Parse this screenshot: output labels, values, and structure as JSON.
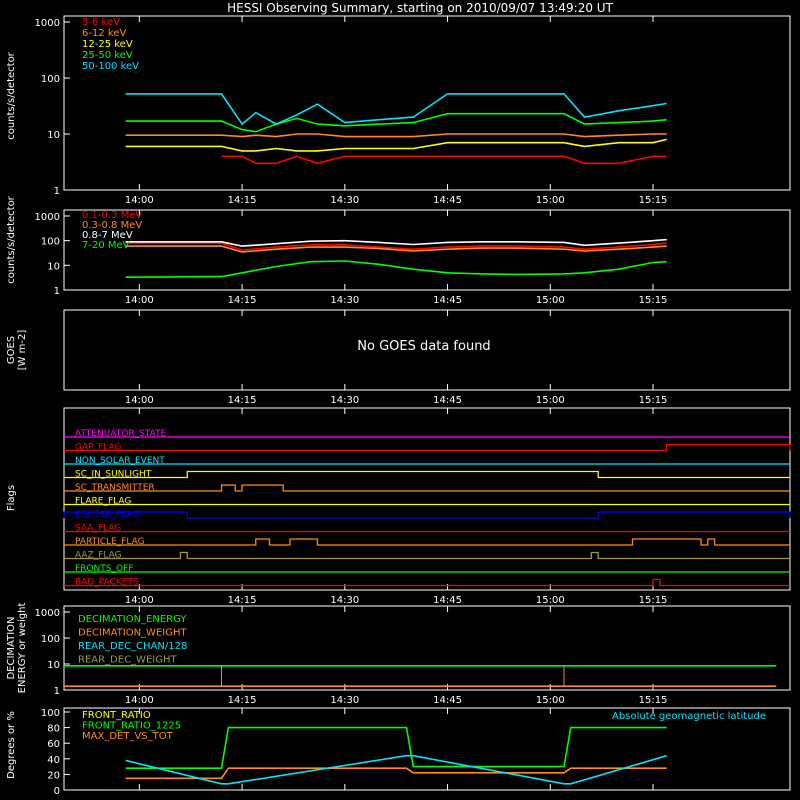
{
  "title": "HESSI Observing Summary, starting on 2010/09/07 13:49:20 UT",
  "time_ticks": [
    "14:00",
    "14:15",
    "14:30",
    "14:45",
    "15:00",
    "15:15"
  ],
  "colors": {
    "red": "#ff0000",
    "orange": "#ff8c1a",
    "yellow": "#ffff00",
    "green": "#00ff00",
    "cyan": "#00e5ff",
    "white": "#ffffff",
    "magenta": "#ff00ff",
    "blue": "#0000ff",
    "olive": "#9a9a3a"
  },
  "chart_data": [
    {
      "type": "line",
      "panel": "hessi-rates",
      "ylabel": "counts/s/detector",
      "ylim": [
        1,
        1000
      ],
      "log": true,
      "yticks": [
        "1",
        "10",
        "100",
        "1000"
      ],
      "x": [
        "13:58",
        "14:12",
        "14:15",
        "14:17",
        "14:20",
        "14:23",
        "14:26",
        "14:30",
        "14:35",
        "14:40",
        "14:45",
        "14:50",
        "14:55",
        "15:02",
        "15:05",
        "15:10",
        "15:15",
        "15:17"
      ],
      "series": [
        {
          "name": "3-6 keV",
          "color": "red",
          "values": [
            null,
            4,
            4,
            3,
            3,
            4,
            3,
            4,
            4,
            4,
            4,
            4,
            4,
            4,
            3,
            3,
            4,
            4
          ]
        },
        {
          "name": "6-12 keV",
          "color": "orange",
          "values": [
            9.5,
            9.5,
            9,
            9.5,
            9,
            10,
            10,
            9,
            9,
            9,
            10,
            10,
            10,
            10,
            9,
            9.5,
            10,
            10
          ]
        },
        {
          "name": "12-25 keV",
          "color": "yellow",
          "values": [
            6,
            6,
            5,
            5,
            5.5,
            5,
            5,
            5.5,
            5.5,
            5.5,
            7,
            7,
            7,
            7,
            6,
            7,
            7,
            8
          ]
        },
        {
          "name": "25-50 keV",
          "color": "green",
          "values": [
            17,
            17,
            12,
            11,
            15,
            19,
            15,
            14,
            15,
            16,
            23,
            23,
            23,
            23,
            15,
            16,
            17,
            18
          ]
        },
        {
          "name": "50-100 keV",
          "color": "cyan",
          "values": [
            52,
            52,
            15,
            24,
            15,
            22,
            34,
            16,
            18,
            20,
            52,
            52,
            52,
            52,
            20,
            26,
            32,
            35
          ]
        }
      ]
    },
    {
      "type": "line",
      "panel": "hessi-mev",
      "ylabel": "counts/s/detector",
      "ylim": [
        1,
        1000
      ],
      "log": true,
      "yticks": [
        "1",
        "10",
        "100",
        "1000"
      ],
      "x": [
        "13:58",
        "14:05",
        "14:12",
        "14:15",
        "14:20",
        "14:25",
        "14:30",
        "14:35",
        "14:40",
        "14:45",
        "14:50",
        "14:55",
        "15:02",
        "15:05",
        "15:10",
        "15:15",
        "15:17"
      ],
      "series": [
        {
          "name": "0.1-0.3 MeV",
          "color": "red",
          "values": [
            80,
            80,
            80,
            42,
            55,
            68,
            68,
            55,
            45,
            55,
            60,
            60,
            55,
            45,
            55,
            70,
            80
          ]
        },
        {
          "name": "0.3-0.8 MeV",
          "color": "orange",
          "values": [
            60,
            60,
            60,
            35,
            45,
            55,
            55,
            48,
            38,
            45,
            50,
            50,
            45,
            38,
            45,
            55,
            60
          ]
        },
        {
          "name": "0.8-7 MeV",
          "color": "white",
          "values": [
            90,
            90,
            90,
            60,
            75,
            95,
            100,
            85,
            70,
            85,
            90,
            90,
            85,
            65,
            80,
            100,
            110
          ]
        },
        {
          "name": "7-20 MeV",
          "color": "green",
          "values": [
            3.3,
            3.4,
            3.5,
            5,
            9,
            14,
            15,
            11,
            7,
            5,
            4.5,
            4.3,
            4.5,
            5,
            7,
            13,
            14
          ]
        }
      ]
    },
    {
      "type": "line",
      "panel": "goes",
      "ylabel": "GOES [W m-2]",
      "message": "No GOES data found",
      "series": []
    },
    {
      "type": "table",
      "panel": "flags",
      "ylabel": "Flags",
      "flags": [
        {
          "name": "ATTENUATOR_STATE",
          "color": "magenta",
          "segments": []
        },
        {
          "name": "GAP_FLAG",
          "color": "red",
          "segments": [
            [
              "15:17",
              "15:35"
            ]
          ]
        },
        {
          "name": "NON_SOLAR_EVENT",
          "color": "cyan",
          "segments": []
        },
        {
          "name": "SC_IN_SUNLIGHT",
          "color": "yellow",
          "segments": [
            [
              "14:07",
              "15:07"
            ]
          ]
        },
        {
          "name": "SC_TRANSMITTER",
          "color": "orange",
          "segments": [
            [
              "14:12",
              "14:14"
            ],
            [
              "14:15",
              "14:21"
            ]
          ]
        },
        {
          "name": "FLARE_FLAG",
          "color": "yellow",
          "segments": []
        },
        {
          "name": "ECLIPSE_FLAG",
          "color": "blue",
          "segments": [
            [
              "13:49",
              "14:07"
            ],
            [
              "15:07",
              "15:35"
            ]
          ]
        },
        {
          "name": "SAA_FLAG",
          "color": "red",
          "segments": []
        },
        {
          "name": "PARTICLE_FLAG",
          "color": "orange",
          "segments": [
            [
              "14:17",
              "14:19"
            ],
            [
              "14:22",
              "14:26"
            ],
            [
              "15:12",
              "15:22"
            ],
            [
              "15:23",
              "15:24"
            ]
          ]
        },
        {
          "name": "AAZ_FLAG",
          "color": "olive",
          "segments": [
            [
              "14:06",
              "14:07"
            ],
            [
              "15:06",
              "15:07"
            ]
          ]
        },
        {
          "name": "FRONTS_OFF",
          "color": "green",
          "segments": []
        },
        {
          "name": "BAD_PACKETS",
          "color": "red",
          "segments": [
            [
              "15:15",
              "15:16"
            ]
          ]
        }
      ]
    },
    {
      "type": "line",
      "panel": "decimation",
      "ylabel": "DECIMATION ENERGY or weight",
      "ylim": [
        1,
        1000
      ],
      "log": true,
      "yticks": [
        "1",
        "10",
        "100",
        "1000"
      ],
      "x": [
        "13:49",
        "13:51",
        "14:12",
        "15:02",
        "15:33"
      ],
      "series": [
        {
          "name": "DECIMATION_ENERGY",
          "color": "green",
          "values": [
            8.5,
            8.5,
            8.5,
            8.5,
            8.5
          ]
        },
        {
          "name": "DECIMATION_WEIGHT",
          "color": "orange",
          "values": [
            1.4,
            1.4,
            1.4,
            1.4,
            1.4
          ]
        },
        {
          "name": "REAR_DEC_CHAN/128",
          "color": "cyan",
          "values": [
            null,
            null,
            null,
            null,
            null
          ]
        },
        {
          "name": "REAR_DEC_WEIGHT",
          "color": "olive",
          "values": [
            null,
            null,
            null,
            null,
            null
          ]
        }
      ]
    },
    {
      "type": "line",
      "panel": "ratios",
      "ylabel": "Degrees or %",
      "ylim": [
        0,
        100
      ],
      "yticks": [
        "0",
        "20",
        "40",
        "60",
        "80",
        "100"
      ],
      "annotation": "Absolute geomagnetic latitude",
      "x": [
        "13:58",
        "14:12",
        "14:13",
        "14:39",
        "14:40",
        "15:02",
        "15:03",
        "15:17"
      ],
      "series": [
        {
          "name": "FRONT_RATIO",
          "color": "yellow",
          "values": [
            null,
            null,
            null,
            null,
            null,
            null,
            null,
            null
          ]
        },
        {
          "name": "FRONT_RATIO_1225",
          "color": "green",
          "values": [
            28,
            28,
            80,
            80,
            30,
            30,
            80,
            80
          ]
        },
        {
          "name": "MAX_DET_VS_TOT",
          "color": "orange",
          "values": [
            15,
            15,
            28,
            28,
            22,
            22,
            28,
            28
          ]
        },
        {
          "name": "Absolute geomagnetic latitude",
          "color": "cyan",
          "values": [
            38,
            8,
            8,
            44,
            44,
            8,
            8,
            44
          ]
        }
      ]
    }
  ]
}
